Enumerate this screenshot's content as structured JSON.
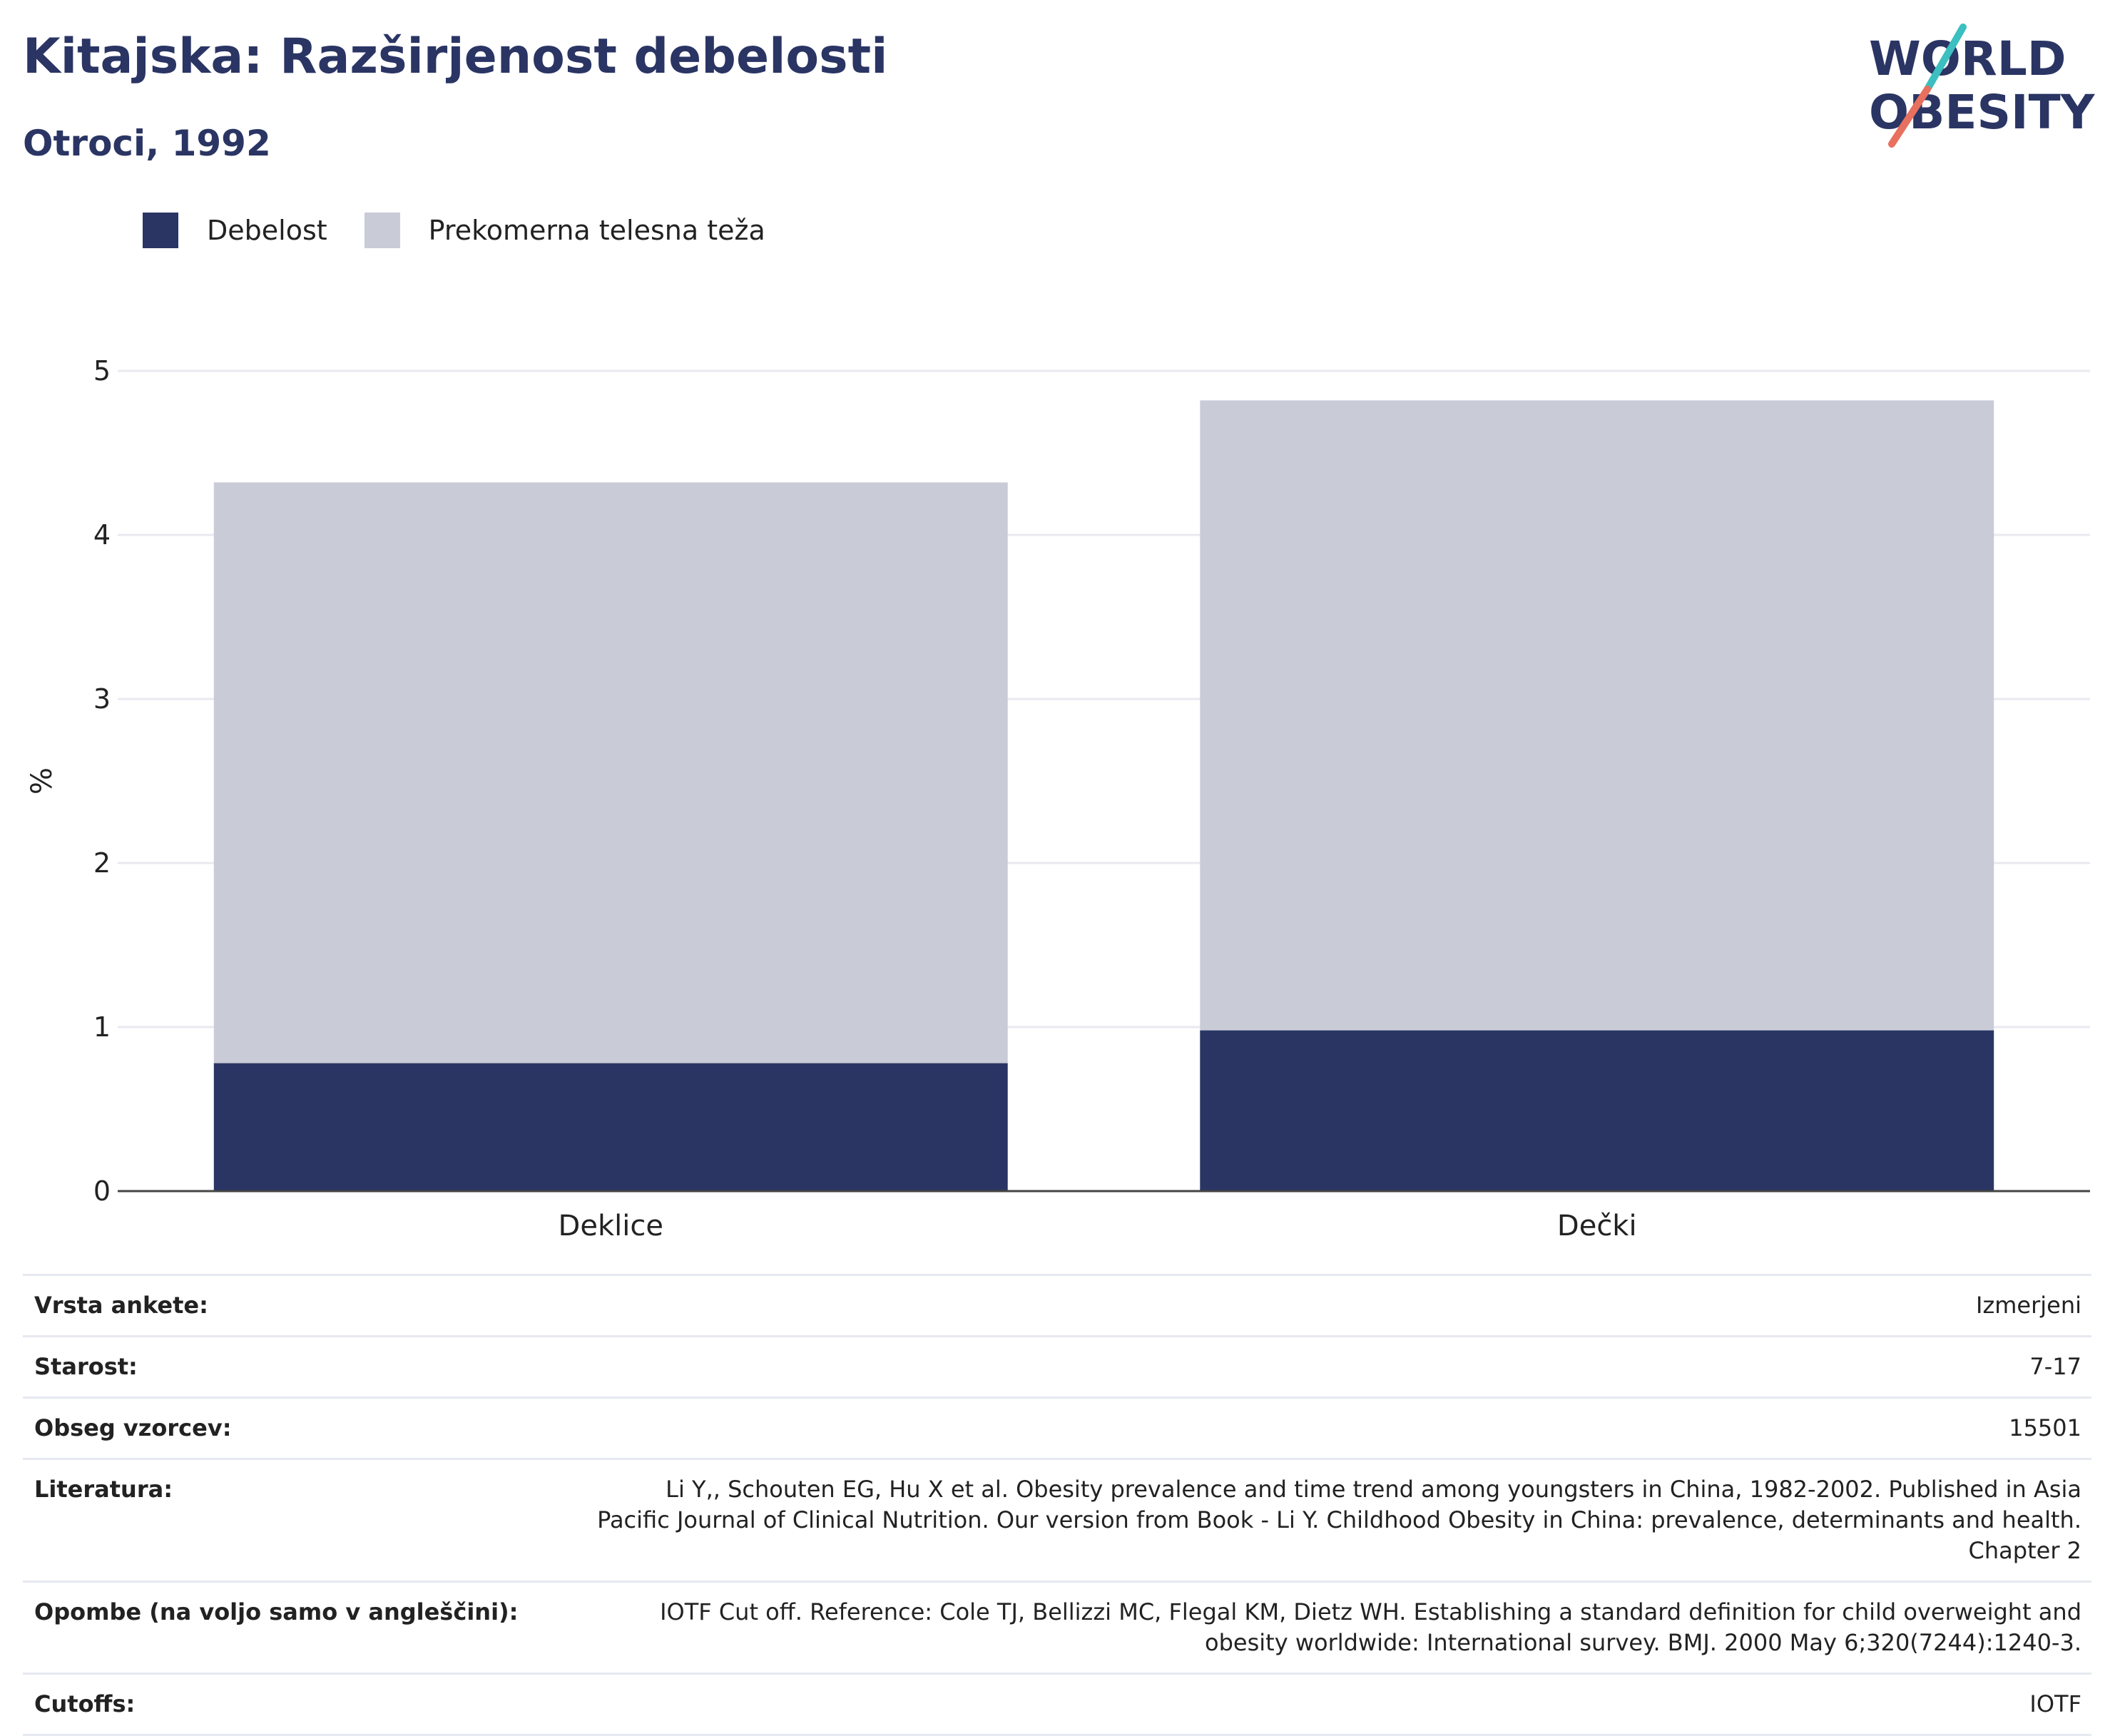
{
  "header": {
    "title": "Kitajska: Razširjenost debelosti",
    "subtitle": "Otroci, 1992"
  },
  "logo": {
    "line1": "WORLD",
    "line2": "OBESITY",
    "colors": {
      "text": "#2a3564",
      "slash_top": "#3bbfc0",
      "slash_bottom": "#e8705f"
    }
  },
  "legend": [
    {
      "label": "Debelost",
      "color": "#2a3564"
    },
    {
      "label": "Prekomerna telesna teža",
      "color": "#c9cbd7"
    }
  ],
  "chart_data": {
    "type": "bar",
    "stacked": true,
    "categories": [
      "Deklice",
      "Dečki"
    ],
    "series": [
      {
        "name": "Debelost",
        "values": [
          0.78,
          0.98
        ],
        "color": "#2a3564"
      },
      {
        "name": "Prekomerna telesna teža",
        "values": [
          3.54,
          3.84
        ],
        "color": "#c9cbd7"
      }
    ],
    "ylabel": "%",
    "ylim": [
      0,
      5
    ],
    "yticks": [
      0,
      1,
      2,
      3,
      4,
      5
    ],
    "grid": true,
    "legend_position": "top-left"
  },
  "info": [
    {
      "label": "Vrsta ankete:",
      "value": "Izmerjeni"
    },
    {
      "label": "Starost:",
      "value": "7-17"
    },
    {
      "label": "Obseg vzorcev:",
      "value": "15501"
    },
    {
      "label": "Literatura:",
      "value": "Li Y,, Schouten EG, Hu X et al. Obesity prevalence and time trend among youngsters in China, 1982-2002. Published in Asia Pacific Journal of Clinical Nutrition. Our version from Book - Li Y. Childhood Obesity in China: prevalence, determinants and health. Chapter 2"
    },
    {
      "label": "Opombe (na voljo samo v angleščini):",
      "value": "IOTF Cut off. Reference: Cole TJ, Bellizzi MC, Flegal KM, Dietz WH. Establishing a standard definition for child overweight and obesity worldwide: International survey. BMJ. 2000 May 6;320(7244):1240-3."
    },
    {
      "label": "Cutoffs:",
      "value": "IOTF"
    }
  ]
}
